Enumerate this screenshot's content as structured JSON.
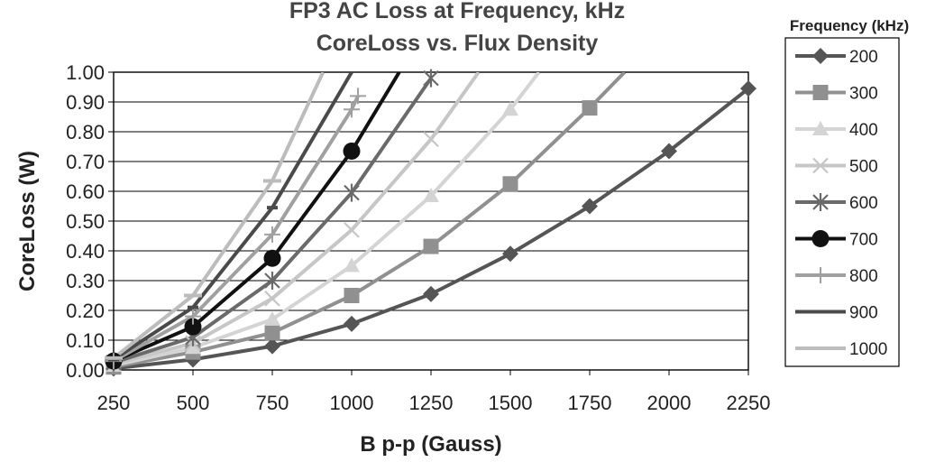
{
  "chart_data": {
    "type": "line",
    "title": "FP3 AC Loss at Frequency, kHz",
    "subtitle": "CoreLoss vs. Flux Density",
    "xlabel": "B p-p (Gauss)",
    "ylabel": "CoreLoss (W)",
    "x_ticks": [
      "250",
      "500",
      "750",
      "1000",
      "1250",
      "1500",
      "1750",
      "2000",
      "2250"
    ],
    "y_ticks": [
      "0.00",
      "0.10",
      "0.20",
      "0.30",
      "0.40",
      "0.50",
      "0.60",
      "0.70",
      "0.80",
      "0.90",
      "1.00"
    ],
    "xlim": [
      250,
      2250
    ],
    "ylim": [
      0,
      1.0
    ],
    "grid": "horizontal",
    "legend_title": "Frequency (kHz)",
    "legend_position": "right",
    "series": [
      {
        "name": "200",
        "color": "#555555",
        "marker": "diamond",
        "x": [
          250,
          500,
          750,
          1000,
          1250,
          1500,
          1750,
          2000,
          2250
        ],
        "y": [
          0.005,
          0.035,
          0.08,
          0.155,
          0.255,
          0.39,
          0.55,
          0.735,
          0.945
        ]
      },
      {
        "name": "300",
        "color": "#909090",
        "marker": "square",
        "x": [
          250,
          500,
          750,
          1000,
          1250,
          1500,
          1750,
          1860
        ],
        "y": [
          0.01,
          0.06,
          0.125,
          0.25,
          0.415,
          0.625,
          0.88,
          1.0
        ]
      },
      {
        "name": "400",
        "color": "#d4d4d4",
        "marker": "triangle",
        "x": [
          250,
          500,
          750,
          1000,
          1250,
          1500,
          1590
        ],
        "y": [
          0.015,
          0.075,
          0.17,
          0.35,
          0.585,
          0.875,
          1.0
        ]
      },
      {
        "name": "500",
        "color": "#c6c6c6",
        "marker": "x",
        "x": [
          250,
          500,
          750,
          1000,
          1250,
          1400
        ],
        "y": [
          0.02,
          0.09,
          0.24,
          0.47,
          0.775,
          1.0
        ]
      },
      {
        "name": "600",
        "color": "#6a6a6a",
        "marker": "star",
        "x": [
          250,
          500,
          750,
          1000,
          1250
        ],
        "y": [
          0.025,
          0.11,
          0.3,
          0.595,
          0.98
        ]
      },
      {
        "name": "700",
        "color": "#111111",
        "marker": "circle",
        "x": [
          250,
          500,
          750,
          1000,
          1150
        ],
        "y": [
          0.03,
          0.145,
          0.375,
          0.735,
          1.0
        ]
      },
      {
        "name": "800",
        "color": "#a0a0a0",
        "marker": "plus",
        "x": [
          250,
          500,
          750,
          1000,
          1020
        ],
        "y": [
          0.03,
          0.18,
          0.455,
          0.875,
          0.92
        ]
      },
      {
        "name": "900",
        "color": "#4a4a4a",
        "marker": "dash",
        "x": [
          250,
          500,
          750,
          1000
        ],
        "y": [
          0.035,
          0.21,
          0.545,
          1.0
        ]
      },
      {
        "name": "1000",
        "color": "#bcbcbc",
        "marker": "hline",
        "x": [
          250,
          500,
          750,
          910
        ],
        "y": [
          0.04,
          0.25,
          0.635,
          1.0
        ]
      }
    ]
  }
}
